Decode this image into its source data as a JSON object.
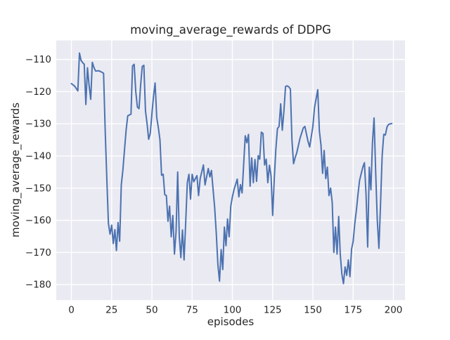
{
  "chart_data": {
    "type": "line",
    "title": "moving_average_rewards of DDPG",
    "xlabel": "episodes",
    "ylabel": "moving_average_rewards",
    "x_ticks": [
      0,
      25,
      50,
      75,
      100,
      125,
      150,
      175,
      200
    ],
    "y_ticks": [
      -110,
      -120,
      -130,
      -140,
      -150,
      -160,
      -170,
      -180
    ],
    "xlim": [
      -9.4,
      207.2
    ],
    "ylim": [
      -184.8,
      -104.1
    ],
    "grid": true,
    "legend_position": "none",
    "plot_bg": "#EAEAF2",
    "grid_color": "#FFFFFF",
    "text_color": "#262626",
    "series": [
      {
        "name": "moving_average_rewards",
        "color": "#4C72B0",
        "points": [
          [
            0,
            -117.5
          ],
          [
            2,
            -118.3
          ],
          [
            3,
            -119
          ],
          [
            4,
            -119.8
          ],
          [
            5,
            -108
          ],
          [
            6,
            -110.3
          ],
          [
            7,
            -111
          ],
          [
            8,
            -111.5
          ],
          [
            9,
            -124
          ],
          [
            10,
            -112.6
          ],
          [
            11,
            -118
          ],
          [
            12,
            -122.4
          ],
          [
            13,
            -110.9
          ],
          [
            14,
            -112.5
          ],
          [
            15,
            -113.6
          ],
          [
            17,
            -113.5
          ],
          [
            19,
            -114
          ],
          [
            20,
            -114.3
          ],
          [
            21,
            -132
          ],
          [
            22,
            -147
          ],
          [
            23,
            -161
          ],
          [
            24,
            -164.3
          ],
          [
            25,
            -161.5
          ],
          [
            26,
            -167.2
          ],
          [
            27,
            -162.9
          ],
          [
            28,
            -169.4
          ],
          [
            29,
            -160.7
          ],
          [
            30,
            -166.5
          ],
          [
            31,
            -149
          ],
          [
            32,
            -144.3
          ],
          [
            33,
            -138
          ],
          [
            34,
            -131.9
          ],
          [
            35,
            -127.5
          ],
          [
            37,
            -127
          ],
          [
            38,
            -112
          ],
          [
            39,
            -111.5
          ],
          [
            40,
            -120
          ],
          [
            41,
            -124.8
          ],
          [
            42,
            -125.3
          ],
          [
            43,
            -118
          ],
          [
            44,
            -112.2
          ],
          [
            45,
            -111.8
          ],
          [
            46,
            -126
          ],
          [
            47,
            -130
          ],
          [
            48,
            -134.8
          ],
          [
            49,
            -133
          ],
          [
            50,
            -127
          ],
          [
            51,
            -121.5
          ],
          [
            52,
            -117.3
          ],
          [
            53,
            -128
          ],
          [
            54,
            -131.2
          ],
          [
            55,
            -135
          ],
          [
            56,
            -146
          ],
          [
            57,
            -145.7
          ],
          [
            58,
            -152
          ],
          [
            59,
            -152.3
          ],
          [
            60,
            -160.3
          ],
          [
            61,
            -155.6
          ],
          [
            62,
            -165.1
          ],
          [
            63,
            -158.5
          ],
          [
            64,
            -170.5
          ],
          [
            65,
            -163.6
          ],
          [
            66,
            -145
          ],
          [
            67,
            -165.1
          ],
          [
            68,
            -171.6
          ],
          [
            69,
            -163
          ],
          [
            70,
            -172.3
          ],
          [
            71,
            -160.7
          ],
          [
            72,
            -148.3
          ],
          [
            73,
            -145.7
          ],
          [
            74,
            -153.4
          ],
          [
            75,
            -145.7
          ],
          [
            76,
            -148
          ],
          [
            78,
            -146.1
          ],
          [
            79,
            -152.3
          ],
          [
            80,
            -147
          ],
          [
            82,
            -142.8
          ],
          [
            83,
            -149
          ],
          [
            85,
            -143.9
          ],
          [
            86,
            -146.5
          ],
          [
            87,
            -144.5
          ],
          [
            89,
            -156
          ],
          [
            90,
            -164
          ],
          [
            91,
            -173.8
          ],
          [
            92,
            -178.9
          ],
          [
            93,
            -169.1
          ],
          [
            94,
            -175.3
          ],
          [
            95,
            -162.1
          ],
          [
            96,
            -167.9
          ],
          [
            97,
            -159.6
          ],
          [
            98,
            -165.1
          ],
          [
            99,
            -155.6
          ],
          [
            100,
            -152.7
          ],
          [
            101,
            -150.5
          ],
          [
            103,
            -147.2
          ],
          [
            104,
            -152.7
          ],
          [
            105,
            -148.9
          ],
          [
            106,
            -151.5
          ],
          [
            108,
            -133.7
          ],
          [
            109,
            -135.9
          ],
          [
            110,
            -133.3
          ],
          [
            111,
            -149.4
          ],
          [
            112,
            -140.6
          ],
          [
            113,
            -148.3
          ],
          [
            114,
            -141.1
          ],
          [
            115,
            -147.9
          ],
          [
            116,
            -139.9
          ],
          [
            117,
            -141
          ],
          [
            118,
            -132.6
          ],
          [
            119,
            -133
          ],
          [
            120,
            -142.8
          ],
          [
            121,
            -141
          ],
          [
            122,
            -148.3
          ],
          [
            123,
            -142.9
          ],
          [
            124,
            -146.2
          ],
          [
            125,
            -158.5
          ],
          [
            126,
            -147
          ],
          [
            127,
            -138
          ],
          [
            128,
            -131.5
          ],
          [
            129,
            -130.8
          ],
          [
            130,
            -123.8
          ],
          [
            131,
            -132
          ],
          [
            132,
            -126
          ],
          [
            133,
            -118.4
          ],
          [
            134,
            -118.2
          ],
          [
            135,
            -118.5
          ],
          [
            136,
            -119.2
          ],
          [
            137,
            -135
          ],
          [
            138,
            -142.4
          ],
          [
            139,
            -140.5
          ],
          [
            140,
            -139
          ],
          [
            142,
            -134.5
          ],
          [
            144,
            -131.3
          ],
          [
            145,
            -130.8
          ],
          [
            147,
            -135.5
          ],
          [
            148,
            -137.2
          ],
          [
            149,
            -134
          ],
          [
            150,
            -130.8
          ],
          [
            151,
            -125
          ],
          [
            153,
            -119.4
          ],
          [
            154,
            -132.2
          ],
          [
            155,
            -136.6
          ],
          [
            156,
            -145.4
          ],
          [
            157,
            -138.3
          ],
          [
            158,
            -147
          ],
          [
            159,
            -143.5
          ],
          [
            160,
            -152.3
          ],
          [
            161,
            -150
          ],
          [
            162,
            -154.5
          ],
          [
            163,
            -170
          ],
          [
            164,
            -162.1
          ],
          [
            165,
            -170.5
          ],
          [
            166,
            -158.8
          ],
          [
            167,
            -170.5
          ],
          [
            168,
            -176.7
          ],
          [
            169,
            -179.7
          ],
          [
            170,
            -174.5
          ],
          [
            171,
            -177.1
          ],
          [
            172,
            -172.3
          ],
          [
            173,
            -177.5
          ],
          [
            174,
            -169
          ],
          [
            175,
            -166.5
          ],
          [
            176,
            -161
          ],
          [
            177,
            -157
          ],
          [
            178,
            -152
          ],
          [
            179,
            -147.6
          ],
          [
            180,
            -145.5
          ],
          [
            181,
            -143.5
          ],
          [
            182,
            -142.1
          ],
          [
            183,
            -152
          ],
          [
            184,
            -168.3
          ],
          [
            185,
            -143.5
          ],
          [
            186,
            -150.5
          ],
          [
            187,
            -136
          ],
          [
            188,
            -128.2
          ],
          [
            189,
            -145
          ],
          [
            190,
            -160
          ],
          [
            191,
            -168.7
          ],
          [
            192,
            -155
          ],
          [
            193,
            -140
          ],
          [
            194,
            -133.3
          ],
          [
            195,
            -133.5
          ],
          [
            196,
            -131
          ],
          [
            197,
            -130.2
          ],
          [
            199,
            -129.9
          ]
        ]
      }
    ]
  }
}
